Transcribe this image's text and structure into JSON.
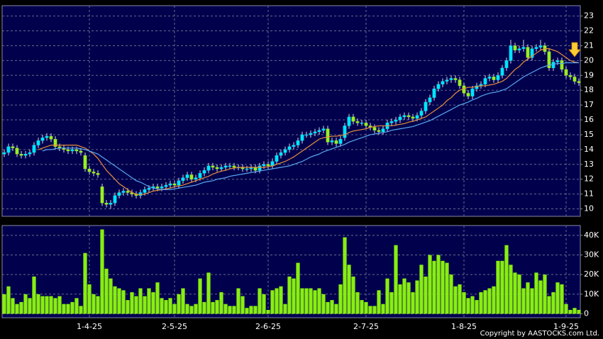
{
  "chart_data": [
    {
      "type": "candlestick",
      "up_color": "#00e5ff",
      "down_color": "#99ee22",
      "ylim": [
        9.5,
        23.7
      ],
      "yticks": [
        10,
        11,
        12,
        13,
        14,
        15,
        16,
        17,
        18,
        19,
        20,
        21,
        22,
        23
      ],
      "grid": true,
      "open": [
        13.7,
        13.8,
        14.2,
        14.1,
        13.7,
        13.6,
        13.7,
        13.8,
        14.3,
        14.6,
        14.8,
        14.9,
        14.7,
        14.2,
        14.1,
        14.0,
        13.9,
        14.0,
        13.9,
        13.6,
        12.7,
        12.5,
        12.4,
        11.5,
        10.4,
        10.3,
        10.4,
        10.9,
        11.1,
        11.2,
        11.1,
        11.0,
        10.9,
        11.1,
        11.3,
        11.4,
        11.5,
        11.4,
        11.5,
        11.6,
        11.7,
        11.6,
        11.9,
        12.1,
        12.3,
        12.0,
        12.1,
        12.4,
        12.6,
        12.9,
        12.8,
        12.7,
        12.8,
        12.9,
        12.9,
        12.8,
        12.8,
        12.7,
        12.7,
        12.8,
        12.6,
        12.9,
        13.0,
        12.9,
        13.2,
        13.6,
        13.8,
        14.0,
        14.2,
        14.3,
        14.6,
        15.0,
        15.0,
        15.1,
        15.2,
        15.3,
        15.4,
        14.5,
        14.6,
        14.4,
        14.8,
        15.6,
        16.2,
        15.9,
        15.8,
        15.8,
        15.6,
        15.5,
        15.3,
        15.2,
        15.4,
        15.8,
        15.9,
        16.0,
        16.2,
        16.3,
        16.2,
        16.1,
        16.3,
        16.6,
        17.2,
        17.5,
        18.1,
        18.4,
        18.6,
        18.7,
        18.8,
        18.7,
        18.3,
        17.8,
        17.6,
        18.1,
        18.3,
        18.4,
        18.8,
        18.9,
        18.7,
        19.0,
        19.5,
        20.0,
        21.0,
        20.7,
        20.8,
        20.9,
        20.2,
        20.8,
        20.9,
        21.0,
        20.6,
        19.5,
        19.9,
        20.0,
        19.4,
        19.0,
        18.9,
        18.6
      ],
      "high": [
        14.0,
        14.4,
        14.4,
        14.3,
        13.9,
        13.9,
        14.0,
        14.5,
        14.8,
        15.0,
        15.1,
        15.1,
        14.9,
        14.4,
        14.3,
        14.2,
        14.2,
        14.2,
        14.1,
        13.8,
        12.9,
        12.7,
        12.6,
        11.7,
        10.6,
        10.6,
        11.1,
        11.3,
        11.4,
        11.4,
        11.3,
        11.2,
        11.3,
        11.5,
        11.6,
        11.7,
        11.7,
        11.7,
        11.8,
        11.9,
        11.9,
        12.1,
        12.3,
        12.5,
        12.5,
        12.3,
        12.6,
        12.8,
        13.1,
        13.1,
        13.0,
        13.0,
        13.1,
        13.1,
        13.1,
        13.0,
        13.0,
        12.9,
        13.0,
        13.0,
        13.1,
        13.2,
        13.2,
        13.4,
        13.8,
        14.0,
        14.2,
        14.4,
        14.5,
        14.8,
        15.2,
        15.2,
        15.3,
        15.4,
        15.5,
        15.6,
        15.6,
        14.8,
        14.8,
        14.9,
        15.8,
        16.4,
        16.4,
        16.1,
        16.0,
        16.0,
        15.8,
        15.7,
        15.5,
        15.6,
        16.0,
        16.1,
        16.2,
        16.4,
        16.5,
        16.5,
        16.4,
        16.5,
        16.8,
        17.4,
        17.7,
        18.3,
        18.6,
        18.8,
        18.9,
        19.0,
        19.0,
        18.9,
        18.5,
        18.0,
        18.3,
        18.5,
        18.6,
        19.0,
        19.1,
        19.1,
        19.2,
        19.7,
        20.2,
        21.4,
        21.2,
        21.0,
        21.4,
        21.1,
        21.0,
        21.1,
        21.4,
        21.2,
        20.8,
        20.1,
        20.2,
        20.2,
        19.6,
        19.2,
        19.1,
        18.8
      ],
      "low": [
        13.5,
        13.6,
        13.9,
        13.5,
        13.4,
        13.4,
        13.5,
        13.6,
        14.1,
        14.4,
        14.6,
        14.5,
        14.0,
        13.9,
        13.8,
        13.7,
        13.7,
        13.7,
        13.6,
        12.5,
        12.3,
        12.2,
        12.1,
        10.2,
        10.1,
        10.0,
        10.2,
        10.7,
        10.9,
        10.9,
        10.8,
        10.7,
        10.7,
        10.9,
        11.1,
        11.2,
        11.2,
        11.2,
        11.3,
        11.4,
        11.4,
        11.4,
        11.7,
        11.9,
        11.8,
        11.8,
        11.9,
        12.2,
        12.4,
        12.6,
        12.5,
        12.5,
        12.6,
        12.7,
        12.6,
        12.6,
        12.5,
        12.5,
        12.5,
        12.4,
        12.4,
        12.7,
        12.7,
        12.7,
        13.0,
        13.4,
        13.6,
        13.8,
        14.0,
        14.1,
        14.4,
        14.8,
        14.8,
        14.9,
        15.0,
        15.1,
        14.3,
        14.3,
        14.2,
        14.2,
        14.6,
        15.4,
        15.7,
        15.6,
        15.6,
        15.4,
        15.3,
        15.1,
        15.0,
        15.0,
        15.2,
        15.6,
        15.7,
        15.8,
        16.0,
        16.0,
        15.9,
        15.9,
        16.1,
        16.4,
        17.0,
        17.3,
        17.9,
        18.2,
        18.4,
        18.5,
        18.5,
        18.1,
        17.6,
        17.4,
        17.4,
        17.9,
        18.1,
        18.2,
        18.6,
        18.5,
        18.5,
        18.8,
        19.3,
        19.8,
        20.5,
        20.5,
        20.6,
        20.0,
        20.0,
        20.6,
        20.7,
        20.4,
        19.3,
        19.3,
        19.7,
        19.2,
        18.8,
        18.7,
        18.4,
        18.3
      ],
      "close": [
        13.8,
        14.2,
        14.1,
        13.7,
        13.6,
        13.7,
        13.8,
        14.3,
        14.6,
        14.8,
        14.9,
        14.7,
        14.2,
        14.1,
        14.0,
        13.9,
        14.0,
        13.9,
        13.8,
        12.7,
        12.5,
        12.4,
        12.3,
        10.4,
        10.3,
        10.4,
        10.9,
        11.1,
        11.2,
        11.1,
        11.0,
        10.9,
        11.1,
        11.3,
        11.4,
        11.5,
        11.4,
        11.5,
        11.6,
        11.7,
        11.6,
        11.9,
        12.1,
        12.3,
        12.0,
        12.1,
        12.4,
        12.6,
        12.9,
        12.8,
        12.7,
        12.8,
        12.9,
        12.9,
        12.8,
        12.8,
        12.7,
        12.7,
        12.8,
        12.6,
        12.9,
        13.0,
        12.9,
        13.2,
        13.6,
        13.8,
        14.0,
        14.2,
        14.3,
        14.6,
        15.0,
        15.0,
        15.1,
        15.2,
        15.3,
        15.4,
        14.5,
        14.6,
        14.4,
        14.7,
        15.6,
        16.2,
        15.9,
        15.8,
        15.8,
        15.6,
        15.5,
        15.3,
        15.2,
        15.4,
        15.8,
        15.9,
        16.0,
        16.2,
        16.3,
        16.2,
        16.1,
        16.3,
        16.6,
        17.2,
        17.5,
        18.1,
        18.4,
        18.6,
        18.7,
        18.8,
        18.7,
        18.3,
        17.8,
        17.6,
        18.1,
        18.3,
        18.4,
        18.8,
        18.9,
        18.7,
        19.0,
        19.5,
        20.0,
        21.0,
        20.7,
        20.8,
        20.9,
        20.2,
        20.8,
        20.9,
        21.0,
        20.6,
        19.5,
        19.9,
        20.0,
        19.4,
        19.0,
        18.9,
        18.6,
        18.5
      ],
      "series": [
        {
          "color": "#e8903a",
          "values": [
            null,
            null,
            null,
            null,
            null,
            null,
            null,
            null,
            14.0,
            14.1,
            14.2,
            14.3,
            14.3,
            14.3,
            14.3,
            14.3,
            14.3,
            14.3,
            14.2,
            14.1,
            13.9,
            13.7,
            13.4,
            13.0,
            12.6,
            12.3,
            12.0,
            11.7,
            11.5,
            11.3,
            11.1,
            11.0,
            10.95,
            11.0,
            11.1,
            11.2,
            11.25,
            11.3,
            11.35,
            11.4,
            11.5,
            11.55,
            11.6,
            11.7,
            11.8,
            11.9,
            12.0,
            12.1,
            12.2,
            12.35,
            12.45,
            12.55,
            12.6,
            12.7,
            12.75,
            12.8,
            12.8,
            12.8,
            12.8,
            12.8,
            12.8,
            12.8,
            12.85,
            12.9,
            13.0,
            13.1,
            13.2,
            13.35,
            13.5,
            13.7,
            13.9,
            14.1,
            14.3,
            14.5,
            14.7,
            14.8,
            14.85,
            14.9,
            14.9,
            14.95,
            15.0,
            15.15,
            15.25,
            15.3,
            15.35,
            15.4,
            15.5,
            15.55,
            15.6,
            15.6,
            15.6,
            15.6,
            15.65,
            15.7,
            15.75,
            15.85,
            15.9,
            16.0,
            16.1,
            16.2,
            16.4,
            16.6,
            16.8,
            17.0,
            17.3,
            17.5,
            17.8,
            18.0,
            18.1,
            18.2,
            18.2,
            18.25,
            18.3,
            18.3,
            18.35,
            18.4,
            18.5,
            18.6,
            18.8,
            19.1,
            19.4,
            19.6,
            19.9,
            20.1,
            20.3,
            20.5,
            20.7,
            20.8,
            20.8,
            20.7,
            20.6,
            20.4,
            20.2,
            20.0,
            19.9,
            19.85
          ]
        },
        {
          "color": "#5aa8f0",
          "values": [
            null,
            null,
            null,
            null,
            null,
            null,
            null,
            null,
            null,
            13.9,
            14.0,
            14.0,
            14.05,
            14.1,
            14.1,
            14.1,
            14.1,
            14.1,
            14.05,
            14.0,
            13.9,
            13.8,
            13.7,
            13.5,
            13.3,
            13.1,
            12.9,
            12.7,
            12.5,
            12.3,
            12.1,
            11.9,
            11.8,
            11.65,
            11.5,
            11.4,
            11.35,
            11.3,
            11.3,
            11.3,
            11.35,
            11.4,
            11.45,
            11.5,
            11.55,
            11.6,
            11.7,
            11.8,
            11.85,
            11.9,
            12.0,
            12.05,
            12.1,
            12.2,
            12.25,
            12.3,
            12.35,
            12.4,
            12.45,
            12.5,
            12.55,
            12.6,
            12.65,
            12.7,
            12.75,
            12.8,
            12.85,
            12.9,
            13.0,
            13.1,
            13.2,
            13.35,
            13.5,
            13.6,
            13.7,
            13.85,
            13.95,
            14.05,
            14.15,
            14.25,
            14.35,
            14.5,
            14.6,
            14.7,
            14.8,
            14.9,
            15.0,
            15.05,
            15.1,
            15.15,
            15.2,
            15.3,
            15.35,
            15.4,
            15.45,
            15.5,
            15.55,
            15.65,
            15.75,
            15.85,
            15.95,
            16.1,
            16.25,
            16.4,
            16.55,
            16.7,
            16.85,
            17.0,
            17.1,
            17.2,
            17.35,
            17.45,
            17.6,
            17.7,
            17.8,
            17.85,
            17.9,
            18.0,
            18.1,
            18.3,
            18.5,
            18.7,
            18.9,
            19.05,
            19.2,
            19.35,
            19.5,
            19.6,
            19.7,
            19.75,
            19.8,
            19.8,
            19.85,
            19.85,
            19.85,
            19.85
          ]
        }
      ]
    },
    {
      "type": "bar",
      "color": "#88ee11",
      "ylim": [
        -2000,
        45000
      ],
      "yticks": [
        0,
        {
          "value": 10000,
          "label": "10K"
        },
        {
          "value": 20000,
          "label": "20K"
        },
        {
          "value": 30000,
          "label": "30K"
        },
        {
          "value": 40000,
          "label": "40K"
        }
      ],
      "grid": true,
      "categories": [
        null,
        null,
        null,
        null,
        null,
        null,
        null,
        null,
        null,
        null,
        null,
        null,
        null,
        null,
        null,
        null,
        null,
        null,
        null,
        null,
        "1-4-25",
        null,
        null,
        null,
        null,
        null,
        null,
        null,
        null,
        null,
        null,
        null,
        null,
        null,
        null,
        null,
        null,
        null,
        null,
        null,
        "2-5-25",
        null,
        null,
        null,
        null,
        null,
        null,
        null,
        null,
        null,
        null,
        null,
        null,
        null,
        null,
        null,
        null,
        null,
        null,
        null,
        null,
        null,
        "2-6-25",
        null,
        null,
        null,
        null,
        null,
        null,
        null,
        null,
        null,
        null,
        null,
        null,
        null,
        null,
        null,
        null,
        null,
        null,
        null,
        null,
        null,
        null,
        "2-7-25",
        null,
        null,
        null,
        null,
        null,
        null,
        null,
        null,
        null,
        null,
        null,
        null,
        null,
        null,
        null,
        null,
        null,
        null,
        null,
        null,
        null,
        null,
        "1-8-25",
        null,
        null,
        null,
        null,
        null,
        null,
        null,
        null,
        null,
        null,
        null,
        null,
        null,
        null,
        null,
        null,
        null,
        null,
        null,
        null,
        null,
        null,
        null,
        "1-9-25",
        null,
        null,
        null
      ],
      "values": [
        10000,
        14000,
        8000,
        5000,
        6000,
        10000,
        8000,
        19000,
        10000,
        9000,
        9000,
        9000,
        8000,
        9000,
        5000,
        5000,
        6000,
        8000,
        4000,
        31000,
        15000,
        10000,
        9000,
        43000,
        23000,
        18000,
        14000,
        13000,
        12000,
        7000,
        11000,
        9000,
        13000,
        9000,
        13000,
        11000,
        16000,
        8000,
        7000,
        8000,
        5000,
        10000,
        13000,
        5000,
        4000,
        5000,
        18000,
        6000,
        21000,
        6000,
        7000,
        11000,
        5000,
        4000,
        4000,
        13000,
        9000,
        3000,
        4000,
        4000,
        13000,
        10000,
        2000,
        12000,
        13000,
        14000,
        5000,
        19000,
        18000,
        26000,
        13000,
        13000,
        13000,
        12000,
        13000,
        10000,
        6000,
        7000,
        5000,
        15000,
        39000,
        25000,
        19000,
        11000,
        7000,
        6000,
        4000,
        4000,
        12000,
        5000,
        18000,
        11000,
        35000,
        15000,
        18000,
        16000,
        11000,
        17000,
        25000,
        19000,
        30000,
        27000,
        30000,
        27000,
        26000,
        20000,
        14000,
        15000,
        11000,
        8000,
        9000,
        7000,
        11000,
        12000,
        13000,
        14000,
        27000,
        27000,
        35000,
        25000,
        21000,
        20000,
        13000,
        16000,
        13000,
        21000,
        17000,
        20000,
        9000,
        11000,
        16000,
        15000,
        5000,
        2000,
        3000,
        2000
      ]
    }
  ],
  "copyright": "Copyright by AASTOCKS.com Ltd."
}
